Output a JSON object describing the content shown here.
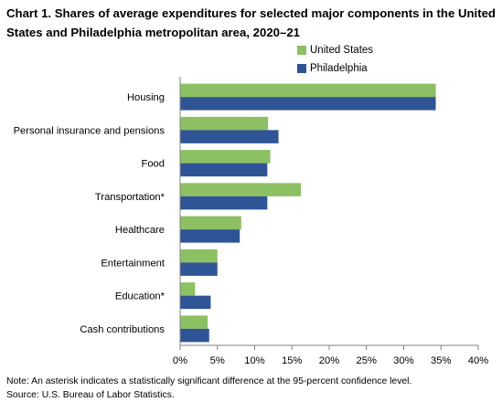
{
  "chart_data": {
    "type": "bar",
    "orientation": "horizontal",
    "title": "Chart 1. Shares of average expenditures for selected major components in the United States and Philadelphia metropolitan area, 2020–21",
    "categories": [
      "Housing",
      "Personal insurance and pensions",
      "Food",
      "Transportation*",
      "Healthcare",
      "Entertainment",
      "Education*",
      "Cash contributions"
    ],
    "series": [
      {
        "name": "United States",
        "color": "#8cc063",
        "values": [
          34.3,
          11.8,
          12.1,
          16.2,
          8.2,
          5.0,
          2.0,
          3.7
        ]
      },
      {
        "name": "Philadelphia",
        "color": "#2f5496",
        "values": [
          34.3,
          13.2,
          11.7,
          11.7,
          8.0,
          5.0,
          4.1,
          3.9
        ]
      }
    ],
    "xlim": [
      0,
      40
    ],
    "xticks": [
      0,
      5,
      10,
      15,
      20,
      25,
      30,
      35,
      40
    ],
    "xtick_labels": [
      "0%",
      "5%",
      "10%",
      "15%",
      "20%",
      "25%",
      "30%",
      "35%",
      "40%"
    ],
    "legend_position": "top-right",
    "grid": false
  },
  "notes": {
    "line1": "Note: An asterisk indicates a statistically significant difference at the 95-percent confidence level.",
    "line2": "Source: U.S. Bureau of Labor Statistics."
  }
}
